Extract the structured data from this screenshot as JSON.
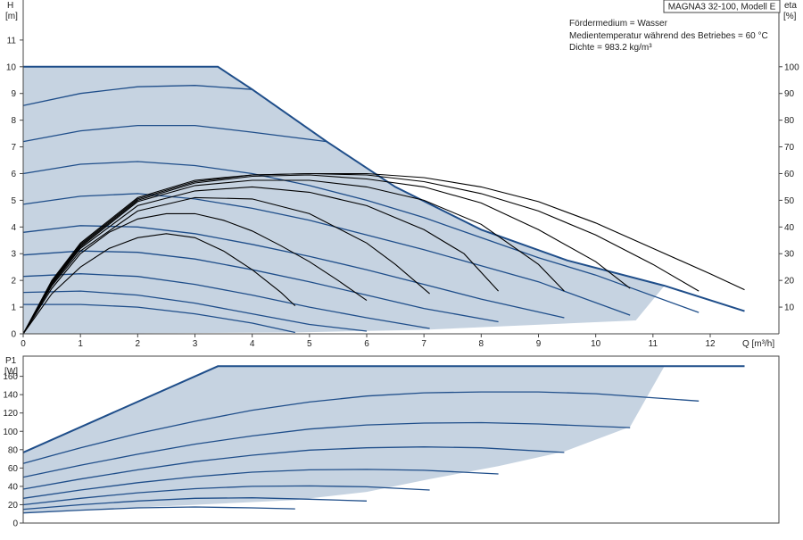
{
  "info": {
    "pump_title": "MAGNA3 32-100, Modell E",
    "medium": "Fördermedium = Wasser",
    "temperature": "Medientemperatur während des Betriebes = 60 °C",
    "density": "Dichte = 983.2 kg/m³"
  },
  "colors": {
    "curve_blue": "#1f4e8a",
    "fill_blue": "#c6d3e1",
    "eta_black": "#000000",
    "axis": "#444444",
    "grid_tick": "#888888"
  },
  "chart_data": [
    {
      "type": "line",
      "name_hint": "head",
      "ylabel": "H",
      "yunit": "[m]",
      "y2label": "eta",
      "y2unit": "[%]",
      "xlabel": "Q [m³/h]",
      "xlim": [
        0,
        13.2
      ],
      "ylim": [
        0,
        12.5
      ],
      "y2lim": [
        0,
        125
      ],
      "xticks": [
        0,
        1,
        2,
        3,
        4,
        5,
        6,
        7,
        8,
        9,
        10,
        11,
        12
      ],
      "yticks": [
        0,
        1,
        2,
        3,
        4,
        5,
        6,
        7,
        8,
        9,
        10,
        11
      ],
      "y2ticks": [
        10,
        20,
        30,
        40,
        50,
        60,
        70,
        80,
        90,
        100
      ],
      "operating_area": [
        [
          0,
          10.0
        ],
        [
          3.4,
          10.0
        ],
        [
          4.0,
          9.15
        ],
        [
          5.3,
          7.2
        ],
        [
          6.5,
          5.5
        ],
        [
          8.0,
          3.9
        ],
        [
          9.5,
          2.75
        ],
        [
          11.2,
          1.8
        ],
        [
          10.7,
          0.5
        ],
        [
          7.0,
          0.15
        ],
        [
          4.7,
          0.05
        ],
        [
          0,
          0
        ]
      ],
      "max_curve": [
        [
          0,
          10.0
        ],
        [
          3.4,
          10.0
        ],
        [
          4.0,
          9.15
        ],
        [
          5.3,
          7.2
        ],
        [
          6.5,
          5.5
        ],
        [
          8.0,
          3.9
        ],
        [
          9.5,
          2.75
        ],
        [
          11.2,
          1.8
        ],
        [
          12.6,
          0.85
        ]
      ],
      "series": [
        {
          "values": [
            [
              0,
              1.1
            ],
            [
              1,
              1.1
            ],
            [
              2,
              1.0
            ],
            [
              3,
              0.75
            ],
            [
              4,
              0.4
            ],
            [
              4.75,
              0.05
            ]
          ]
        },
        {
          "values": [
            [
              0,
              1.55
            ],
            [
              1,
              1.6
            ],
            [
              2,
              1.45
            ],
            [
              3,
              1.15
            ],
            [
              4,
              0.75
            ],
            [
              5,
              0.35
            ],
            [
              6.0,
              0.1
            ]
          ]
        },
        {
          "values": [
            [
              0,
              2.15
            ],
            [
              1,
              2.25
            ],
            [
              2,
              2.15
            ],
            [
              3,
              1.85
            ],
            [
              4,
              1.45
            ],
            [
              5,
              1.0
            ],
            [
              6,
              0.6
            ],
            [
              7.1,
              0.2
            ]
          ]
        },
        {
          "values": [
            [
              0,
              2.95
            ],
            [
              1,
              3.1
            ],
            [
              2,
              3.05
            ],
            [
              3,
              2.8
            ],
            [
              4,
              2.4
            ],
            [
              5,
              1.95
            ],
            [
              6,
              1.45
            ],
            [
              7,
              0.95
            ],
            [
              8.3,
              0.45
            ]
          ]
        },
        {
          "values": [
            [
              0,
              3.8
            ],
            [
              1,
              4.05
            ],
            [
              2,
              4.0
            ],
            [
              3,
              3.75
            ],
            [
              4,
              3.35
            ],
            [
              5,
              2.9
            ],
            [
              6,
              2.4
            ],
            [
              7,
              1.85
            ],
            [
              8,
              1.3
            ],
            [
              9.45,
              0.6
            ]
          ]
        },
        {
          "values": [
            [
              0,
              4.85
            ],
            [
              1,
              5.15
            ],
            [
              2,
              5.25
            ],
            [
              3,
              5.05
            ],
            [
              4,
              4.7
            ],
            [
              5,
              4.25
            ],
            [
              6,
              3.7
            ],
            [
              7,
              3.15
            ],
            [
              8,
              2.55
            ],
            [
              9,
              1.95
            ],
            [
              10.6,
              0.7
            ]
          ]
        },
        {
          "values": [
            [
              0,
              6.0
            ],
            [
              1,
              6.35
            ],
            [
              2,
              6.45
            ],
            [
              3,
              6.3
            ],
            [
              4,
              6.0
            ],
            [
              5,
              5.55
            ],
            [
              6,
              5.0
            ],
            [
              7,
              4.35
            ],
            [
              8,
              3.6
            ],
            [
              9,
              2.85
            ],
            [
              10,
              2.2
            ],
            [
              11.8,
              0.8
            ]
          ]
        },
        {
          "values": [
            [
              0,
              7.2
            ],
            [
              1,
              7.6
            ],
            [
              2,
              7.8
            ],
            [
              3,
              7.8
            ],
            [
              4,
              7.55
            ],
            [
              5.3,
              7.2
            ]
          ]
        },
        {
          "values": [
            [
              0,
              8.55
            ],
            [
              1,
              9.0
            ],
            [
              2,
              9.25
            ],
            [
              3,
              9.3
            ],
            [
              4.0,
              9.15
            ]
          ]
        }
      ],
      "eta_series": [
        {
          "values": [
            [
              0,
              0
            ],
            [
              0.5,
              15
            ],
            [
              1,
              25
            ],
            [
              1.5,
              32
            ],
            [
              2,
              36
            ],
            [
              2.5,
              37.5
            ],
            [
              3,
              36
            ],
            [
              3.5,
              31
            ],
            [
              4,
              24
            ],
            [
              4.5,
              15.5
            ],
            [
              4.75,
              10.5
            ]
          ]
        },
        {
          "values": [
            [
              0,
              0
            ],
            [
              0.5,
              17
            ],
            [
              1,
              30
            ],
            [
              1.5,
              38
            ],
            [
              2,
              43
            ],
            [
              2.5,
              45
            ],
            [
              3,
              45
            ],
            [
              3.5,
              42.5
            ],
            [
              4,
              38.5
            ],
            [
              4.5,
              33
            ],
            [
              5,
              27
            ],
            [
              5.5,
              20
            ],
            [
              6.0,
              12.5
            ]
          ]
        },
        {
          "values": [
            [
              0,
              0
            ],
            [
              0.5,
              18
            ],
            [
              1,
              31
            ],
            [
              2,
              46
            ],
            [
              3,
              51
            ],
            [
              4,
              50.5
            ],
            [
              5,
              45
            ],
            [
              6,
              34
            ],
            [
              6.5,
              26
            ],
            [
              7.1,
              15
            ]
          ]
        },
        {
          "values": [
            [
              0,
              0
            ],
            [
              0.5,
              18.5
            ],
            [
              1,
              32
            ],
            [
              2,
              48
            ],
            [
              3,
              53.5
            ],
            [
              4,
              55
            ],
            [
              5,
              53
            ],
            [
              6,
              48
            ],
            [
              7,
              39
            ],
            [
              7.7,
              30
            ],
            [
              8.3,
              16
            ]
          ]
        },
        {
          "values": [
            [
              0,
              0
            ],
            [
              0.5,
              19
            ],
            [
              1,
              32.5
            ],
            [
              2,
              49.5
            ],
            [
              3,
              55.5
            ],
            [
              4,
              57.5
            ],
            [
              5,
              57.5
            ],
            [
              6,
              55
            ],
            [
              7,
              50
            ],
            [
              8,
              41
            ],
            [
              9,
              26
            ],
            [
              9.45,
              16
            ]
          ]
        },
        {
          "values": [
            [
              0,
              0
            ],
            [
              0.5,
              19.5
            ],
            [
              1,
              33
            ],
            [
              2,
              50
            ],
            [
              3,
              56.5
            ],
            [
              4,
              59
            ],
            [
              5,
              59.5
            ],
            [
              6,
              58
            ],
            [
              7,
              55
            ],
            [
              8,
              49
            ],
            [
              9,
              39
            ],
            [
              10,
              27
            ],
            [
              10.6,
              17
            ]
          ]
        },
        {
          "values": [
            [
              0,
              0
            ],
            [
              0.5,
              19.5
            ],
            [
              1,
              33.5
            ],
            [
              2,
              50.5
            ],
            [
              3,
              57
            ],
            [
              4,
              59.5
            ],
            [
              5,
              60
            ],
            [
              6,
              59.5
            ],
            [
              7,
              57
            ],
            [
              8,
              52.5
            ],
            [
              9,
              46
            ],
            [
              10,
              37
            ],
            [
              11,
              26
            ],
            [
              11.8,
              16
            ]
          ]
        },
        {
          "values": [
            [
              0,
              0
            ],
            [
              0.5,
              20
            ],
            [
              1,
              34
            ],
            [
              2,
              51
            ],
            [
              3,
              57.5
            ],
            [
              4,
              59.5
            ],
            [
              5,
              60
            ],
            [
              6,
              60
            ],
            [
              7,
              58.5
            ],
            [
              8,
              55
            ],
            [
              9,
              49.5
            ],
            [
              10,
              41.5
            ],
            [
              11,
              32
            ],
            [
              12,
              22.5
            ],
            [
              12.6,
              16.5
            ]
          ]
        }
      ]
    },
    {
      "type": "line",
      "name_hint": "power",
      "ylabel": "P1",
      "yunit": "[W]",
      "xlim": [
        0,
        13.2
      ],
      "ylim": [
        0,
        182
      ],
      "yticks": [
        0,
        20,
        40,
        60,
        80,
        100,
        120,
        140,
        160
      ],
      "operating_area": [
        [
          0,
          77
        ],
        [
          3.4,
          171
        ],
        [
          11.2,
          171
        ],
        [
          10.6,
          105
        ],
        [
          9.45,
          78
        ],
        [
          8.3,
          62
        ],
        [
          7.1,
          48
        ],
        [
          6.0,
          34
        ],
        [
          4.75,
          25
        ],
        [
          0,
          11
        ]
      ],
      "max_curve": [
        [
          0,
          77
        ],
        [
          3.4,
          171
        ],
        [
          12.6,
          171
        ]
      ],
      "series": [
        {
          "values": [
            [
              0,
              11
            ],
            [
              1,
              14
            ],
            [
              2,
              16.5
            ],
            [
              3,
              17.5
            ],
            [
              4,
              16.5
            ],
            [
              4.75,
              15.5
            ]
          ]
        },
        {
          "values": [
            [
              0,
              15
            ],
            [
              1,
              20
            ],
            [
              2,
              24
            ],
            [
              3,
              27
            ],
            [
              4,
              27.5
            ],
            [
              5,
              26
            ],
            [
              6.0,
              24
            ]
          ]
        },
        {
          "values": [
            [
              0,
              20
            ],
            [
              1,
              27
            ],
            [
              2,
              33
            ],
            [
              3,
              37.5
            ],
            [
              4,
              40
            ],
            [
              5,
              40.5
            ],
            [
              6,
              39.5
            ],
            [
              7.1,
              36
            ]
          ]
        },
        {
          "values": [
            [
              0,
              27
            ],
            [
              1,
              36
            ],
            [
              2,
              44
            ],
            [
              3,
              50.5
            ],
            [
              4,
              55.5
            ],
            [
              5,
              58
            ],
            [
              6,
              58.5
            ],
            [
              7,
              57.5
            ],
            [
              8.3,
              53.5
            ]
          ]
        },
        {
          "values": [
            [
              0,
              37
            ],
            [
              1,
              48
            ],
            [
              2,
              58
            ],
            [
              3,
              67
            ],
            [
              4,
              74
            ],
            [
              5,
              79.5
            ],
            [
              6,
              82
            ],
            [
              7,
              83
            ],
            [
              8,
              82
            ],
            [
              9.45,
              77
            ]
          ]
        },
        {
          "values": [
            [
              0,
              50
            ],
            [
              1,
              63
            ],
            [
              2,
              75
            ],
            [
              3,
              86
            ],
            [
              4,
              95
            ],
            [
              5,
              102.5
            ],
            [
              6,
              107
            ],
            [
              7,
              109
            ],
            [
              8,
              109.5
            ],
            [
              9,
              108
            ],
            [
              10.6,
              104
            ]
          ]
        },
        {
          "values": [
            [
              0,
              65
            ],
            [
              1,
              82
            ],
            [
              2,
              97.5
            ],
            [
              3,
              111
            ],
            [
              4,
              123
            ],
            [
              5,
              132
            ],
            [
              6,
              138.5
            ],
            [
              7,
              142
            ],
            [
              8,
              143
            ],
            [
              9,
              143
            ],
            [
              10,
              141
            ],
            [
              11.8,
              133
            ]
          ]
        }
      ]
    }
  ]
}
